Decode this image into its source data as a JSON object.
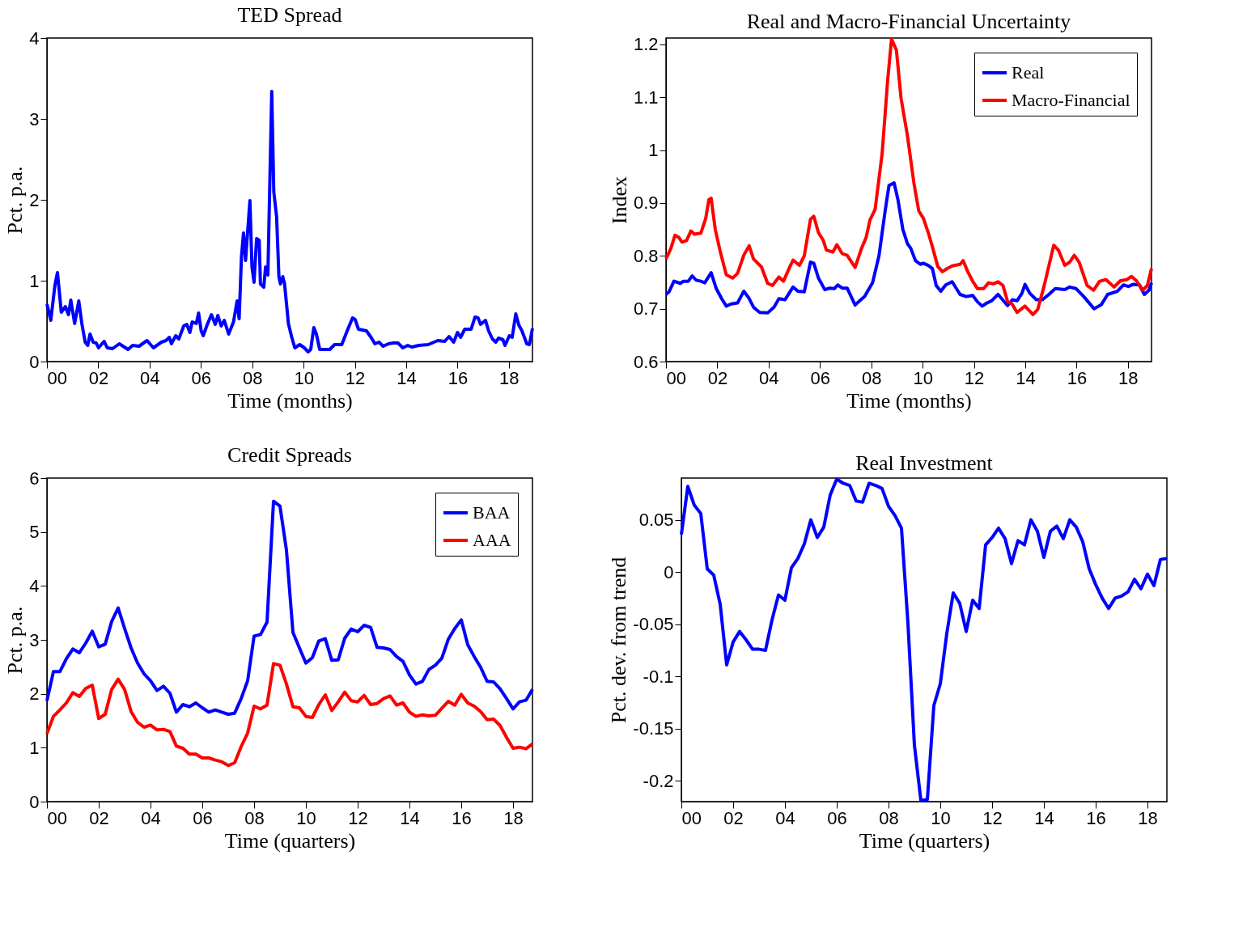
{
  "chart_data": [
    {
      "type": "line",
      "title": "TED Spread",
      "xlabel": "Time (months)",
      "ylabel": "Pct. p.a.",
      "xlim": [
        2000,
        2018.92
      ],
      "ylim": [
        0,
        4
      ],
      "yticks": [
        0,
        1,
        2,
        3,
        4
      ],
      "xticks": [
        {
          "value": 2000,
          "label": "00"
        },
        {
          "value": 2002,
          "label": "02"
        },
        {
          "value": 2004,
          "label": "04"
        },
        {
          "value": 2006,
          "label": "06"
        },
        {
          "value": 2008,
          "label": "08"
        },
        {
          "value": 2010,
          "label": "10"
        },
        {
          "value": 2012,
          "label": "12"
        },
        {
          "value": 2014,
          "label": "14"
        },
        {
          "value": 2016,
          "label": "16"
        },
        {
          "value": 2018,
          "label": "18"
        }
      ],
      "grid": false,
      "legend": false,
      "series": [
        {
          "color": "#0000ff",
          "x": [
            2000.0,
            2000.15,
            2000.31,
            2000.41,
            2000.56,
            2000.72,
            2000.84,
            2000.93,
            2001.08,
            2001.24,
            2001.36,
            2001.49,
            2001.59,
            2001.68,
            2001.8,
            2001.92,
            2002.01,
            2002.23,
            2002.35,
            2002.56,
            2002.82,
            2003.16,
            2003.34,
            2003.59,
            2003.9,
            2004.15,
            2004.46,
            2004.64,
            2004.77,
            2004.85,
            2005.02,
            2005.14,
            2005.33,
            2005.45,
            2005.57,
            2005.66,
            2005.82,
            2005.91,
            2006.01,
            2006.09,
            2006.25,
            2006.41,
            2006.56,
            2006.66,
            2006.79,
            2006.91,
            2007.08,
            2007.27,
            2007.41,
            2007.49,
            2007.58,
            2007.66,
            2007.74,
            2007.91,
            2007.99,
            2008.07,
            2008.17,
            2008.27,
            2008.32,
            2008.45,
            2008.52,
            2008.61,
            2008.76,
            2008.84,
            2008.95,
            2009.04,
            2009.1,
            2009.19,
            2009.26,
            2009.41,
            2009.54,
            2009.66,
            2009.85,
            2010.03,
            2010.18,
            2010.28,
            2010.4,
            2010.5,
            2010.63,
            2010.84,
            2011.02,
            2011.21,
            2011.49,
            2011.7,
            2011.91,
            2012.01,
            2012.14,
            2012.45,
            2012.63,
            2012.78,
            2012.94,
            2013.1,
            2013.31,
            2013.5,
            2013.68,
            2013.87,
            2014.06,
            2014.22,
            2014.49,
            2014.86,
            2015.23,
            2015.5,
            2015.67,
            2015.85,
            2016.0,
            2016.12,
            2016.28,
            2016.53,
            2016.68,
            2016.8,
            2016.9,
            2017.09,
            2017.21,
            2017.36,
            2017.49,
            2017.6,
            2017.77,
            2017.85,
            2018.02,
            2018.13,
            2018.27,
            2018.39,
            2018.51,
            2018.7,
            2018.8,
            2018.92
          ],
          "values": [
            0.71,
            0.51,
            0.94,
            1.1,
            0.61,
            0.68,
            0.58,
            0.76,
            0.47,
            0.75,
            0.47,
            0.24,
            0.2,
            0.34,
            0.24,
            0.23,
            0.17,
            0.25,
            0.17,
            0.16,
            0.22,
            0.15,
            0.2,
            0.19,
            0.26,
            0.17,
            0.24,
            0.26,
            0.3,
            0.22,
            0.32,
            0.28,
            0.44,
            0.46,
            0.36,
            0.49,
            0.47,
            0.6,
            0.38,
            0.32,
            0.46,
            0.58,
            0.46,
            0.57,
            0.44,
            0.51,
            0.34,
            0.49,
            0.75,
            0.53,
            1.29,
            1.59,
            1.25,
            1.99,
            1.17,
            0.98,
            1.52,
            1.5,
            0.96,
            0.92,
            1.17,
            1.07,
            3.34,
            2.1,
            1.79,
            1.05,
            0.96,
            1.05,
            0.96,
            0.47,
            0.3,
            0.17,
            0.21,
            0.17,
            0.12,
            0.15,
            0.42,
            0.34,
            0.15,
            0.15,
            0.15,
            0.21,
            0.21,
            0.38,
            0.54,
            0.52,
            0.4,
            0.38,
            0.3,
            0.22,
            0.24,
            0.19,
            0.22,
            0.23,
            0.23,
            0.17,
            0.2,
            0.18,
            0.2,
            0.21,
            0.26,
            0.25,
            0.31,
            0.24,
            0.36,
            0.3,
            0.4,
            0.4,
            0.55,
            0.54,
            0.46,
            0.51,
            0.38,
            0.28,
            0.24,
            0.29,
            0.27,
            0.2,
            0.32,
            0.3,
            0.59,
            0.45,
            0.38,
            0.22,
            0.21,
            0.41
          ]
        }
      ]
    },
    {
      "type": "line",
      "title": "Real and Macro-Financial Uncertainty",
      "xlabel": "Time (months)",
      "ylabel": "Index",
      "xlim": [
        2000,
        2018.92
      ],
      "ylim": [
        0.6,
        1.212
      ],
      "yticks": [
        0.6,
        0.7,
        0.8,
        0.9,
        1,
        1.1,
        1.2
      ],
      "xticks": [
        {
          "value": 2000,
          "label": "00"
        },
        {
          "value": 2002,
          "label": "02"
        },
        {
          "value": 2004,
          "label": "04"
        },
        {
          "value": 2006,
          "label": "06"
        },
        {
          "value": 2008,
          "label": "08"
        },
        {
          "value": 2010,
          "label": "10"
        },
        {
          "value": 2012,
          "label": "12"
        },
        {
          "value": 2014,
          "label": "14"
        },
        {
          "value": 2016,
          "label": "16"
        },
        {
          "value": 2018,
          "label": "18"
        }
      ],
      "grid": false,
      "legend": "top right",
      "series": [
        {
          "name": "Real",
          "color": "#0000ff",
          "x": [
            2000.0,
            2000.12,
            2000.31,
            2000.56,
            2000.68,
            2000.87,
            2001.02,
            2001.18,
            2001.36,
            2001.51,
            2001.76,
            2001.96,
            2002.17,
            2002.35,
            2002.54,
            2002.79,
            2003.03,
            2003.22,
            2003.41,
            2003.65,
            2003.96,
            2004.21,
            2004.4,
            2004.64,
            2004.95,
            2005.14,
            2005.39,
            2005.63,
            2005.76,
            2005.94,
            2006.19,
            2006.38,
            2006.56,
            2006.69,
            2006.87,
            2007.06,
            2007.37,
            2007.55,
            2007.74,
            2008.05,
            2008.3,
            2008.54,
            2008.69,
            2008.89,
            2009.04,
            2009.23,
            2009.41,
            2009.54,
            2009.72,
            2009.91,
            2010.03,
            2010.22,
            2010.38,
            2010.53,
            2010.71,
            2010.9,
            2011.15,
            2011.46,
            2011.7,
            2011.95,
            2012.14,
            2012.32,
            2012.51,
            2012.69,
            2012.94,
            2013.31,
            2013.5,
            2013.68,
            2013.87,
            2013.99,
            2014.18,
            2014.43,
            2014.67,
            2014.92,
            2015.17,
            2015.54,
            2015.73,
            2015.98,
            2016.28,
            2016.68,
            2016.97,
            2017.21,
            2017.59,
            2017.83,
            2018.02,
            2018.2,
            2018.45,
            2018.64,
            2018.82,
            2018.92
          ],
          "values": [
            0.727,
            0.732,
            0.752,
            0.748,
            0.752,
            0.752,
            0.762,
            0.754,
            0.752,
            0.749,
            0.768,
            0.738,
            0.719,
            0.705,
            0.709,
            0.711,
            0.733,
            0.721,
            0.703,
            0.693,
            0.692,
            0.703,
            0.719,
            0.717,
            0.741,
            0.733,
            0.732,
            0.788,
            0.786,
            0.758,
            0.736,
            0.739,
            0.738,
            0.745,
            0.739,
            0.739,
            0.707,
            0.715,
            0.723,
            0.749,
            0.8,
            0.885,
            0.933,
            0.938,
            0.906,
            0.85,
            0.823,
            0.814,
            0.791,
            0.784,
            0.786,
            0.782,
            0.776,
            0.744,
            0.733,
            0.745,
            0.751,
            0.727,
            0.723,
            0.725,
            0.713,
            0.705,
            0.711,
            0.715,
            0.727,
            0.706,
            0.717,
            0.715,
            0.729,
            0.746,
            0.729,
            0.717,
            0.717,
            0.727,
            0.738,
            0.736,
            0.741,
            0.738,
            0.723,
            0.7,
            0.708,
            0.727,
            0.733,
            0.745,
            0.742,
            0.746,
            0.745,
            0.727,
            0.735,
            0.749
          ]
        },
        {
          "name": "Macro-Financial",
          "color": "#ff0000",
          "x": [
            2000.0,
            2000.19,
            2000.35,
            2000.5,
            2000.62,
            2000.8,
            2000.97,
            2001.11,
            2001.36,
            2001.55,
            2001.67,
            2001.76,
            2001.92,
            2002.11,
            2002.35,
            2002.6,
            2002.79,
            2003.03,
            2003.24,
            2003.41,
            2003.72,
            2003.96,
            2004.15,
            2004.4,
            2004.58,
            2004.77,
            2004.95,
            2005.2,
            2005.39,
            2005.63,
            2005.76,
            2005.94,
            2006.13,
            2006.25,
            2006.5,
            2006.66,
            2006.87,
            2007.06,
            2007.37,
            2007.62,
            2007.8,
            2007.95,
            2008.15,
            2008.42,
            2008.64,
            2008.79,
            2008.98,
            2009.16,
            2009.41,
            2009.66,
            2009.85,
            2010.03,
            2010.22,
            2010.4,
            2010.59,
            2010.77,
            2010.96,
            2011.15,
            2011.46,
            2011.58,
            2011.76,
            2011.95,
            2012.14,
            2012.38,
            2012.57,
            2012.76,
            2012.94,
            2013.13,
            2013.31,
            2013.5,
            2013.68,
            2013.99,
            2014.3,
            2014.49,
            2014.74,
            2015.11,
            2015.29,
            2015.54,
            2015.73,
            2015.91,
            2016.1,
            2016.41,
            2016.66,
            2016.9,
            2017.15,
            2017.46,
            2017.71,
            2017.96,
            2018.14,
            2018.33,
            2018.58,
            2018.76,
            2018.92
          ],
          "values": [
            0.794,
            0.814,
            0.839,
            0.835,
            0.826,
            0.829,
            0.847,
            0.841,
            0.843,
            0.871,
            0.906,
            0.909,
            0.85,
            0.809,
            0.764,
            0.758,
            0.767,
            0.801,
            0.819,
            0.794,
            0.779,
            0.748,
            0.744,
            0.76,
            0.752,
            0.773,
            0.792,
            0.782,
            0.8,
            0.869,
            0.875,
            0.844,
            0.829,
            0.811,
            0.807,
            0.821,
            0.804,
            0.801,
            0.778,
            0.814,
            0.835,
            0.868,
            0.888,
            0.992,
            1.133,
            1.21,
            1.189,
            1.098,
            1.027,
            0.938,
            0.885,
            0.871,
            0.844,
            0.814,
            0.78,
            0.77,
            0.776,
            0.781,
            0.784,
            0.791,
            0.77,
            0.752,
            0.738,
            0.738,
            0.749,
            0.747,
            0.751,
            0.744,
            0.714,
            0.708,
            0.693,
            0.705,
            0.689,
            0.699,
            0.744,
            0.82,
            0.811,
            0.782,
            0.788,
            0.801,
            0.788,
            0.744,
            0.735,
            0.752,
            0.755,
            0.741,
            0.753,
            0.755,
            0.761,
            0.753,
            0.735,
            0.744,
            0.776
          ]
        }
      ]
    },
    {
      "type": "line",
      "title": "Credit Spreads",
      "xlabel": "Time (quarters)",
      "ylabel": "Pct. p.a.",
      "xlim": [
        2000,
        2018.75
      ],
      "ylim": [
        0,
        6
      ],
      "yticks": [
        0,
        1,
        2,
        3,
        4,
        5,
        6
      ],
      "xticks": [
        {
          "value": 2000,
          "label": "00"
        },
        {
          "value": 2002,
          "label": "02"
        },
        {
          "value": 2004,
          "label": "04"
        },
        {
          "value": 2006,
          "label": "06"
        },
        {
          "value": 2008,
          "label": "08"
        },
        {
          "value": 2010,
          "label": "10"
        },
        {
          "value": 2012,
          "label": "12"
        },
        {
          "value": 2014,
          "label": "14"
        },
        {
          "value": 2016,
          "label": "16"
        },
        {
          "value": 2018,
          "label": "18"
        }
      ],
      "x": [
        2000,
        2000.25,
        2000.5,
        2000.75,
        2001,
        2001.25,
        2001.5,
        2001.75,
        2002,
        2002.25,
        2002.5,
        2002.75,
        2003,
        2003.25,
        2003.5,
        2003.75,
        2004,
        2004.25,
        2004.5,
        2004.75,
        2005,
        2005.25,
        2005.5,
        2005.75,
        2006,
        2006.25,
        2006.5,
        2006.75,
        2007,
        2007.25,
        2007.5,
        2007.75,
        2008,
        2008.25,
        2008.5,
        2008.75,
        2009,
        2009.25,
        2009.5,
        2009.75,
        2010,
        2010.25,
        2010.5,
        2010.75,
        2011,
        2011.25,
        2011.5,
        2011.75,
        2012,
        2012.25,
        2012.5,
        2012.75,
        2013,
        2013.25,
        2013.5,
        2013.75,
        2014,
        2014.25,
        2014.5,
        2014.75,
        2015,
        2015.25,
        2015.5,
        2015.75,
        2016,
        2016.25,
        2016.5,
        2016.75,
        2017,
        2017.25,
        2017.5,
        2017.75,
        2018,
        2018.25,
        2018.5,
        2018.75
      ],
      "grid": false,
      "legend": "top right",
      "series": [
        {
          "name": "BAA",
          "color": "#0000ff",
          "values": [
            1.87,
            2.41,
            2.41,
            2.65,
            2.83,
            2.76,
            2.94,
            3.16,
            2.87,
            2.92,
            3.34,
            3.59,
            3.21,
            2.85,
            2.57,
            2.37,
            2.24,
            2.06,
            2.14,
            2.01,
            1.66,
            1.8,
            1.76,
            1.83,
            1.74,
            1.66,
            1.7,
            1.66,
            1.62,
            1.64,
            1.91,
            2.24,
            3.07,
            3.1,
            3.33,
            5.57,
            5.48,
            4.66,
            3.14,
            2.85,
            2.57,
            2.67,
            2.98,
            3.02,
            2.62,
            2.63,
            3.03,
            3.2,
            3.15,
            3.27,
            3.23,
            2.86,
            2.85,
            2.82,
            2.69,
            2.6,
            2.35,
            2.18,
            2.23,
            2.45,
            2.53,
            2.66,
            3.01,
            3.21,
            3.37,
            2.91,
            2.69,
            2.49,
            2.23,
            2.22,
            2.09,
            1.91,
            1.72,
            1.85,
            1.88,
            2.08
          ]
        },
        {
          "name": "AAA",
          "color": "#ff0000",
          "values": [
            1.26,
            1.58,
            1.7,
            1.83,
            2.02,
            1.95,
            2.1,
            2.16,
            1.54,
            1.62,
            2.08,
            2.27,
            2.08,
            1.67,
            1.47,
            1.38,
            1.42,
            1.33,
            1.34,
            1.3,
            1.03,
            0.99,
            0.88,
            0.88,
            0.81,
            0.81,
            0.77,
            0.74,
            0.67,
            0.72,
            1.02,
            1.27,
            1.77,
            1.72,
            1.79,
            2.56,
            2.53,
            2.18,
            1.76,
            1.74,
            1.58,
            1.56,
            1.8,
            1.98,
            1.69,
            1.85,
            2.03,
            1.87,
            1.85,
            1.97,
            1.8,
            1.82,
            1.91,
            1.96,
            1.79,
            1.83,
            1.66,
            1.58,
            1.61,
            1.59,
            1.6,
            1.73,
            1.86,
            1.79,
            1.99,
            1.83,
            1.77,
            1.67,
            1.52,
            1.53,
            1.41,
            1.19,
            0.99,
            1.01,
            0.98,
            1.07
          ]
        }
      ]
    },
    {
      "type": "line",
      "title": "Real Investment",
      "xlabel": "Time (quarters)",
      "ylabel": "Pct. dev. from trend",
      "xlim": [
        2000,
        2018.75
      ],
      "ylim": [
        -0.22,
        0.09
      ],
      "yticks": [
        -0.2,
        -0.15,
        -0.1,
        -0.05,
        0,
        0.05
      ],
      "xticks": [
        {
          "value": 2000,
          "label": "00"
        },
        {
          "value": 2002,
          "label": "02"
        },
        {
          "value": 2004,
          "label": "04"
        },
        {
          "value": 2006,
          "label": "06"
        },
        {
          "value": 2008,
          "label": "08"
        },
        {
          "value": 2010,
          "label": "10"
        },
        {
          "value": 2012,
          "label": "12"
        },
        {
          "value": 2014,
          "label": "14"
        },
        {
          "value": 2016,
          "label": "16"
        },
        {
          "value": 2018,
          "label": "18"
        }
      ],
      "x": [
        2000,
        2000.25,
        2000.5,
        2000.75,
        2001,
        2001.25,
        2001.5,
        2001.75,
        2002,
        2002.25,
        2002.5,
        2002.75,
        2003,
        2003.25,
        2003.5,
        2003.75,
        2004,
        2004.25,
        2004.5,
        2004.75,
        2005,
        2005.25,
        2005.5,
        2005.75,
        2006,
        2006.25,
        2006.5,
        2006.75,
        2007,
        2007.25,
        2007.5,
        2007.75,
        2008,
        2008.25,
        2008.5,
        2008.75,
        2009,
        2009.25,
        2009.5,
        2009.75,
        2010,
        2010.25,
        2010.5,
        2010.75,
        2011,
        2011.25,
        2011.5,
        2011.75,
        2012,
        2012.25,
        2012.5,
        2012.75,
        2013,
        2013.25,
        2013.5,
        2013.75,
        2014,
        2014.25,
        2014.5,
        2014.75,
        2015,
        2015.25,
        2015.5,
        2015.75,
        2016,
        2016.25,
        2016.5,
        2016.75,
        2017,
        2017.25,
        2017.5,
        2017.75,
        2018,
        2018.25,
        2018.5,
        2018.75
      ],
      "grid": false,
      "legend": false,
      "series": [
        {
          "color": "#0000ff",
          "values": [
            0.036,
            0.082,
            0.064,
            0.056,
            0.003,
            -0.003,
            -0.031,
            -0.089,
            -0.067,
            -0.057,
            -0.065,
            -0.074,
            -0.074,
            -0.075,
            -0.046,
            -0.022,
            -0.027,
            0.004,
            0.013,
            0.027,
            0.05,
            0.033,
            0.043,
            0.074,
            0.089,
            0.085,
            0.083,
            0.068,
            0.067,
            0.085,
            0.083,
            0.08,
            0.063,
            0.054,
            0.042,
            -0.049,
            -0.166,
            -0.219,
            -0.218,
            -0.128,
            -0.107,
            -0.059,
            -0.02,
            -0.03,
            -0.057,
            -0.027,
            -0.035,
            0.026,
            0.033,
            0.042,
            0.032,
            0.008,
            0.03,
            0.026,
            0.05,
            0.039,
            0.014,
            0.039,
            0.044,
            0.032,
            0.05,
            0.043,
            0.029,
            0.003,
            -0.012,
            -0.025,
            -0.035,
            -0.025,
            -0.023,
            -0.019,
            -0.007,
            -0.016,
            -0.002,
            -0.013,
            0.012,
            0.013
          ]
        }
      ]
    }
  ]
}
